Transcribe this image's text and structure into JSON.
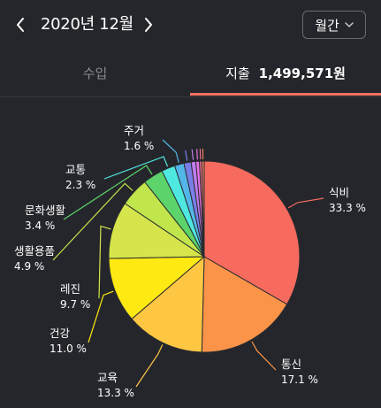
{
  "header": {
    "month_title": "2020년 12월",
    "period_label": "월간",
    "prev_icon": "chevron-left-icon",
    "next_icon": "chevron-right-icon",
    "dropdown_icon": "chevron-down-icon"
  },
  "tabs": {
    "income_label": "수입",
    "expense_label": "지출",
    "expense_total": "1,499,571원"
  },
  "colors": {
    "accent": "#f26f61",
    "background": "#25262b"
  },
  "chart_data": {
    "type": "pie",
    "title": "",
    "slices": [
      {
        "name": "식비",
        "value": 33.3,
        "pct_text": "33.3 %",
        "color": "#f66b5e"
      },
      {
        "name": "통신",
        "value": 17.1,
        "pct_text": "17.1 %",
        "color": "#fb9449"
      },
      {
        "name": "교육",
        "value": 13.3,
        "pct_text": "13.3 %",
        "color": "#fdc744"
      },
      {
        "name": "건강",
        "value": 11.0,
        "pct_text": "11.0 %",
        "color": "#ffe912"
      },
      {
        "name": "레진",
        "value": 9.7,
        "pct_text": "9.7 %",
        "color": "#d5e54b"
      },
      {
        "name": "생활용품",
        "value": 4.9,
        "pct_text": "4.9 %",
        "color": "#c0e64c"
      },
      {
        "name": "문화생활",
        "value": 3.4,
        "pct_text": "3.4 %",
        "color": "#5cd46b"
      },
      {
        "name": "교통",
        "value": 2.3,
        "pct_text": "2.3 %",
        "color": "#4ee8e0"
      },
      {
        "name": "주거",
        "value": 1.6,
        "pct_text": "1.6 %",
        "color": "#54b6e8"
      },
      {
        "name": "",
        "value": 1.2,
        "pct_text": "",
        "color": "#7a7fe8"
      },
      {
        "name": "",
        "value": 0.8,
        "pct_text": "",
        "color": "#c07cee"
      },
      {
        "name": "",
        "value": 0.6,
        "pct_text": "",
        "color": "#e571e8"
      },
      {
        "name": "",
        "value": 0.4,
        "pct_text": "",
        "color": "#f07090"
      },
      {
        "name": "",
        "value": 0.4,
        "pct_text": "",
        "color": "#f08060"
      }
    ]
  }
}
